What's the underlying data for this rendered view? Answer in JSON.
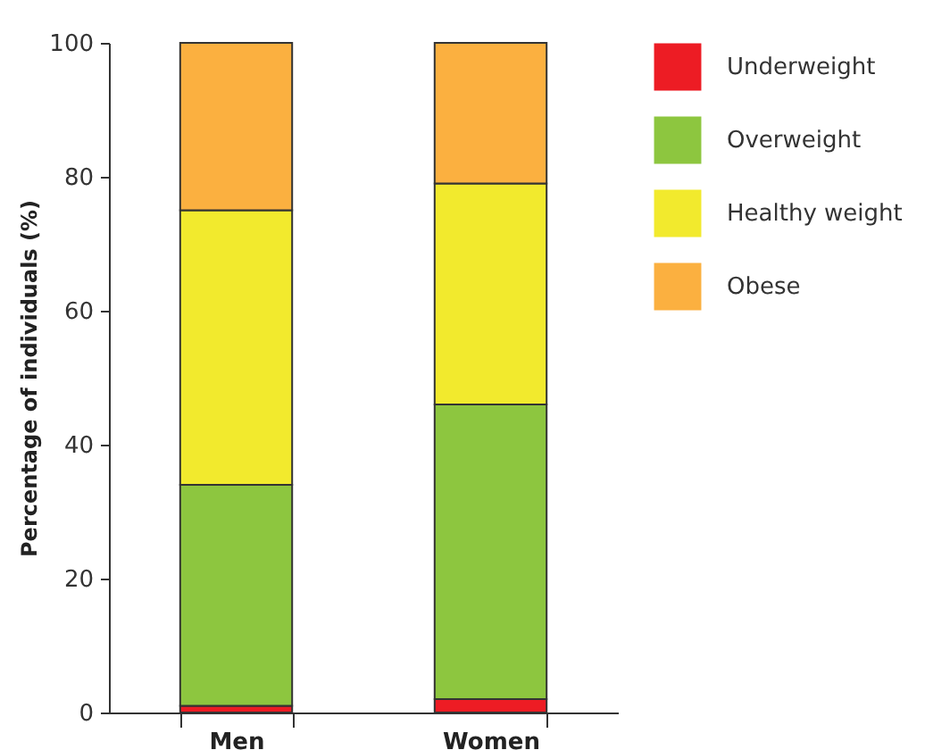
{
  "chart_data": {
    "type": "bar",
    "stacked": true,
    "ylabel": "Percentage of individuals (%)",
    "categories": [
      "Men",
      "Women"
    ],
    "series": [
      {
        "name": "Underweight",
        "color": "#ed1c24",
        "values": [
          1,
          2
        ]
      },
      {
        "name": "Overweight",
        "color": "#8dc63f",
        "values": [
          33,
          44
        ]
      },
      {
        "name": "Healthy weight",
        "color": "#f2ea2d",
        "values": [
          41,
          33
        ]
      },
      {
        "name": "Obese",
        "color": "#fbb040",
        "values": [
          25,
          21
        ]
      }
    ],
    "ylim": [
      0,
      100
    ],
    "yticks": [
      0,
      20,
      40,
      60,
      80,
      100
    ],
    "legend": "right",
    "grid": false
  }
}
